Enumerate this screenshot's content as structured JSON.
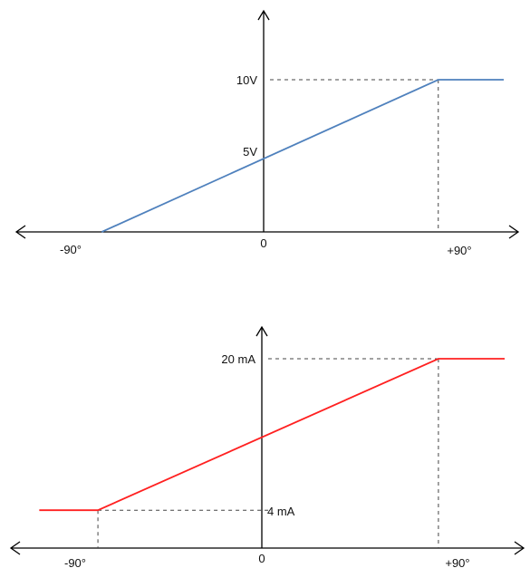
{
  "chart_data": [
    {
      "type": "line",
      "title": "",
      "xlabel": "",
      "ylabel": "",
      "x_tick_labels": [
        "-90°",
        "0",
        "+90°"
      ],
      "y_tick_labels": [
        "5V",
        "10V"
      ],
      "xlim": [
        -125,
        125
      ],
      "ylim": [
        0,
        10
      ],
      "series": [
        {
          "color": "#4f81bd",
          "x": [
            -90,
            90,
            125
          ],
          "y": [
            0,
            10,
            10
          ]
        }
      ],
      "reference_levels": [
        5,
        10
      ],
      "reference_x": [
        90
      ]
    },
    {
      "type": "line",
      "title": "",
      "xlabel": "",
      "ylabel": "",
      "x_tick_labels": [
        "-90°",
        "0",
        "+90°"
      ],
      "y_tick_labels": [
        "4 mA",
        "20 mA"
      ],
      "xlim": [
        -125,
        125
      ],
      "ylim": [
        0,
        20
      ],
      "series": [
        {
          "color": "#ff2020",
          "x": [
            -121,
            -90,
            90,
            125
          ],
          "y": [
            4,
            4,
            20,
            20
          ]
        }
      ],
      "reference_levels": [
        4,
        20
      ],
      "reference_x": [
        -90,
        90
      ]
    }
  ]
}
